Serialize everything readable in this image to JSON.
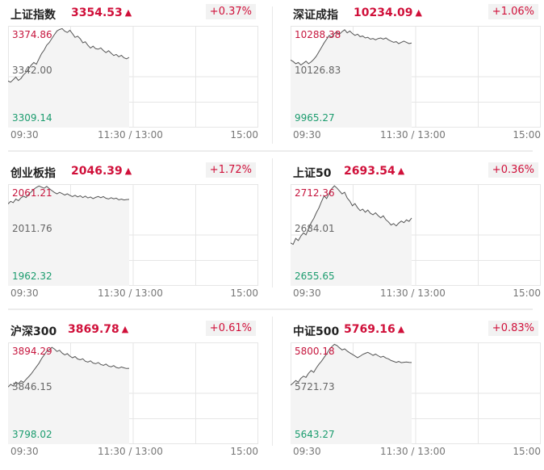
{
  "colors": {
    "up": "#d0103a",
    "high": "#c6153d",
    "low": "#1b9c6e",
    "grid": "#e6e6e6",
    "line": "#555555",
    "fill": "#f4f4f4"
  },
  "panels": [
    {
      "name": "上证指数",
      "price": "3354.53",
      "arrow": "▲",
      "change": "+0.37%",
      "high": "3374.86",
      "mid": "3342.00",
      "low": "3309.14",
      "time_open": "09:30",
      "time_mid": "11:30 / 13:00",
      "time_close": "15:00",
      "series": [
        3339.2,
        3338.5,
        3340.1,
        3341.8,
        3339.6,
        3340.9,
        3343.2,
        3344.8,
        3347.1,
        3349.5,
        3351.2,
        3350.1,
        3353.6,
        3356.9,
        3359.2,
        3362.4,
        3364.1,
        3366.8,
        3369.2,
        3371.6,
        3372.5,
        3373.1,
        3371.4,
        3370.6,
        3372.0,
        3369.8,
        3367.4,
        3368.2,
        3366.5,
        3363.9,
        3364.6,
        3362.3,
        3360.5,
        3361.7,
        3360.1,
        3359.8,
        3360.6,
        3358.9,
        3357.6,
        3358.8,
        3357.2,
        3355.7,
        3356.4,
        3354.9,
        3355.8,
        3354.2,
        3353.6,
        3354.5
      ]
    },
    {
      "name": "深证成指",
      "price": "10234.09",
      "arrow": "▲",
      "change": "+1.06%",
      "high": "10288.38",
      "mid": "10126.83",
      "low": "9965.27",
      "time_open": "09:30",
      "time_mid": "11:30 / 13:00",
      "time_close": "15:00",
      "series": [
        10180,
        10175,
        10168,
        10172,
        10164,
        10170,
        10176,
        10168,
        10174,
        10182,
        10192,
        10206,
        10220,
        10234,
        10246,
        10258,
        10252,
        10264,
        10268,
        10262,
        10270,
        10276,
        10266,
        10272,
        10264,
        10258,
        10262,
        10254,
        10256,
        10250,
        10252,
        10246,
        10248,
        10244,
        10248,
        10250,
        10246,
        10250,
        10244,
        10240,
        10236,
        10238,
        10232,
        10236,
        10240,
        10236,
        10232,
        10234
      ]
    },
    {
      "name": "创业板指",
      "price": "2046.39",
      "arrow": "▲",
      "change": "+1.72%",
      "high": "2061.21",
      "mid": "2011.76",
      "low": "1962.32",
      "time_open": "09:30",
      "time_mid": "11:30 / 13:00",
      "time_close": "15:00",
      "series": [
        2042.0,
        2044.5,
        2043.2,
        2046.8,
        2045.1,
        2047.9,
        2049.6,
        2048.2,
        2051.3,
        2053.7,
        2056.2,
        2058.1,
        2059.4,
        2058.3,
        2057.2,
        2059.0,
        2056.8,
        2054.9,
        2053.1,
        2051.8,
        2053.2,
        2052.0,
        2050.6,
        2051.9,
        2050.3,
        2049.1,
        2050.4,
        2048.8,
        2049.9,
        2048.1,
        2049.6,
        2047.8,
        2048.7,
        2047.2,
        2048.3,
        2049.2,
        2048.0,
        2049.1,
        2047.5,
        2046.8,
        2048.0,
        2046.9,
        2047.6,
        2045.9,
        2046.7,
        2045.8,
        2046.2,
        2046.4
      ]
    },
    {
      "name": "上证50",
      "price": "2693.54",
      "arrow": "▲",
      "change": "+0.36%",
      "high": "2712.36",
      "mid": "2684.01",
      "low": "2655.65",
      "time_open": "09:30",
      "time_mid": "11:30 / 13:00",
      "time_close": "15:00",
      "series": [
        2679.6,
        2678.8,
        2682.1,
        2680.9,
        2683.4,
        2685.2,
        2684.1,
        2687.6,
        2690.8,
        2693.2,
        2696.4,
        2699.1,
        2702.6,
        2705.8,
        2704.3,
        2707.4,
        2709.9,
        2711.4,
        2710.2,
        2708.6,
        2706.9,
        2707.8,
        2704.6,
        2702.9,
        2700.3,
        2701.5,
        2699.2,
        2697.6,
        2698.4,
        2696.7,
        2697.9,
        2696.1,
        2695.3,
        2696.4,
        2694.8,
        2693.6,
        2694.7,
        2692.5,
        2691.3,
        2689.6,
        2690.4,
        2689.1,
        2690.6,
        2691.8,
        2690.9,
        2692.4,
        2691.6,
        2693.5
      ]
    },
    {
      "name": "沪深300",
      "price": "3869.78",
      "arrow": "▲",
      "change": "+0.61%",
      "high": "3894.29",
      "mid": "3846.15",
      "low": "3798.02",
      "time_open": "09:30",
      "time_mid": "11:30 / 13:00",
      "time_close": "15:00",
      "series": [
        3852.0,
        3854.6,
        3853.1,
        3856.8,
        3855.2,
        3857.9,
        3856.4,
        3859.3,
        3861.8,
        3864.6,
        3867.9,
        3871.2,
        3874.6,
        3878.9,
        3882.4,
        3885.9,
        3887.3,
        3889.6,
        3888.1,
        3885.7,
        3886.9,
        3884.2,
        3882.5,
        3883.7,
        3881.3,
        3879.8,
        3880.9,
        3878.6,
        3877.9,
        3878.8,
        3876.5,
        3875.7,
        3876.9,
        3874.8,
        3874.1,
        3875.3,
        3873.4,
        3872.6,
        3873.8,
        3871.9,
        3871.2,
        3872.4,
        3870.6,
        3869.9,
        3871.1,
        3870.2,
        3869.6,
        3869.8
      ]
    },
    {
      "name": "中证500",
      "price": "5769.16",
      "arrow": "▲",
      "change": "+0.83%",
      "high": "5800.18",
      "mid": "5721.73",
      "low": "5643.27",
      "time_open": "09:30",
      "time_mid": "11:30 / 13:00",
      "time_close": "15:00",
      "series": [
        5734.2,
        5737.6,
        5741.3,
        5738.9,
        5744.8,
        5748.1,
        5746.2,
        5752.6,
        5756.9,
        5754.1,
        5760.8,
        5766.4,
        5771.2,
        5776.9,
        5782.5,
        5789.1,
        5793.6,
        5797.2,
        5795.4,
        5791.8,
        5788.6,
        5790.2,
        5786.9,
        5784.1,
        5781.8,
        5779.2,
        5776.6,
        5778.9,
        5781.6,
        5783.4,
        5784.9,
        5782.7,
        5780.3,
        5782.1,
        5779.6,
        5777.4,
        5778.8,
        5776.2,
        5774.8,
        5772.3,
        5770.9,
        5769.4,
        5770.8,
        5768.9,
        5769.6,
        5770.1,
        5769.3,
        5769.2
      ]
    }
  ]
}
